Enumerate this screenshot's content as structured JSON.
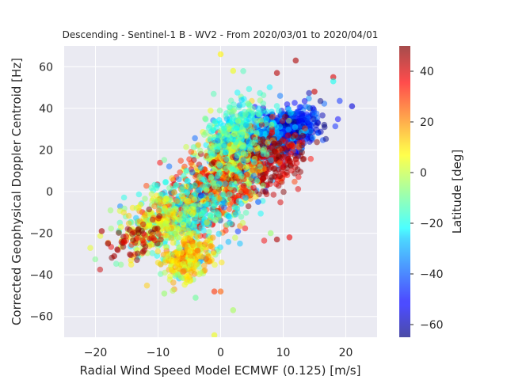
{
  "chart_data": {
    "type": "scatter",
    "title": "Descending - Sentinel-1 B - WV2 - From 2020/03/01 to 2020/04/01",
    "xlabel": "Radial Wind Speed Model ECMWF (0.125) [m/s]",
    "ylabel": "Corrected Geophysical Doppler Centroid [Hz]",
    "xlim": [
      -25,
      25
    ],
    "ylim": [
      -70,
      70
    ],
    "xticks": [
      -20,
      -10,
      0,
      10,
      20
    ],
    "yticks": [
      -60,
      -40,
      -20,
      0,
      20,
      40,
      60
    ],
    "grid": true,
    "colorbar": {
      "label": "Latitude [deg]",
      "colormap": "jet",
      "range": [
        -65,
        50
      ],
      "ticks": [
        -60,
        -40,
        -20,
        0,
        20,
        40
      ]
    },
    "clusters": [
      {
        "x_center": 10,
        "y_center": 28,
        "x_spread": 4,
        "y_spread": 7,
        "latitude": -50,
        "count": 650
      },
      {
        "x_center": 5,
        "y_center": 22,
        "x_spread": 4,
        "y_spread": 10,
        "latitude": -30,
        "count": 400
      },
      {
        "x_center": 8,
        "y_center": 15,
        "x_spread": 4,
        "y_spread": 9,
        "latitude": 42,
        "count": 240
      },
      {
        "x_center": 1,
        "y_center": 12,
        "x_spread": 4,
        "y_spread": 12,
        "latitude": 0,
        "count": 350
      },
      {
        "x_center": -2,
        "y_center": -2,
        "x_spread": 5,
        "y_spread": 12,
        "latitude": 35,
        "count": 320
      },
      {
        "x_center": -5,
        "y_center": -10,
        "x_spread": 6,
        "y_spread": 12,
        "latitude": -20,
        "count": 380
      },
      {
        "x_center": -5,
        "y_center": -32,
        "x_spread": 2.5,
        "y_spread": 6,
        "latitude": 10,
        "count": 260
      },
      {
        "x_center": -10,
        "y_center": -15,
        "x_spread": 4,
        "y_spread": 10,
        "latitude": 5,
        "count": 250
      },
      {
        "x_center": -13,
        "y_center": -22,
        "x_spread": 3,
        "y_spread": 6,
        "latitude": 45,
        "count": 60
      },
      {
        "x_center": 2,
        "y_center": 30,
        "x_spread": 3,
        "y_spread": 10,
        "latitude": -15,
        "count": 200
      }
    ],
    "outliers": [
      {
        "x": 0,
        "y": 66,
        "latitude": 8
      },
      {
        "x": 2,
        "y": 58,
        "latitude": 5
      },
      {
        "x": 12,
        "y": 63,
        "latitude": 45
      },
      {
        "x": 9,
        "y": 57,
        "latitude": 44
      },
      {
        "x": 18,
        "y": 55,
        "latitude": 40
      },
      {
        "x": 18,
        "y": 53,
        "latitude": -20
      },
      {
        "x": 15,
        "y": 48,
        "latitude": 42
      },
      {
        "x": 21,
        "y": 41,
        "latitude": -55
      },
      {
        "x": 8,
        "y": -20,
        "latitude": -5
      },
      {
        "x": 9,
        "y": -23,
        "latitude": 45
      },
      {
        "x": 11,
        "y": -22,
        "latitude": 38
      },
      {
        "x": -18,
        "y": -25,
        "latitude": 48
      },
      {
        "x": -19,
        "y": -19,
        "latitude": 45
      },
      {
        "x": -17,
        "y": -31,
        "latitude": 46
      },
      {
        "x": -9,
        "y": -49,
        "latitude": -5
      },
      {
        "x": -4,
        "y": -51,
        "latitude": -10
      },
      {
        "x": 2,
        "y": -57,
        "latitude": -3
      },
      {
        "x": -1,
        "y": -69,
        "latitude": 5
      },
      {
        "x": 0,
        "y": -48,
        "latitude": 25
      },
      {
        "x": -1,
        "y": -48,
        "latitude": 30
      },
      {
        "x": 4,
        "y": -3,
        "latitude": -30
      },
      {
        "x": 6,
        "y": -5,
        "latitude": -40
      }
    ]
  }
}
